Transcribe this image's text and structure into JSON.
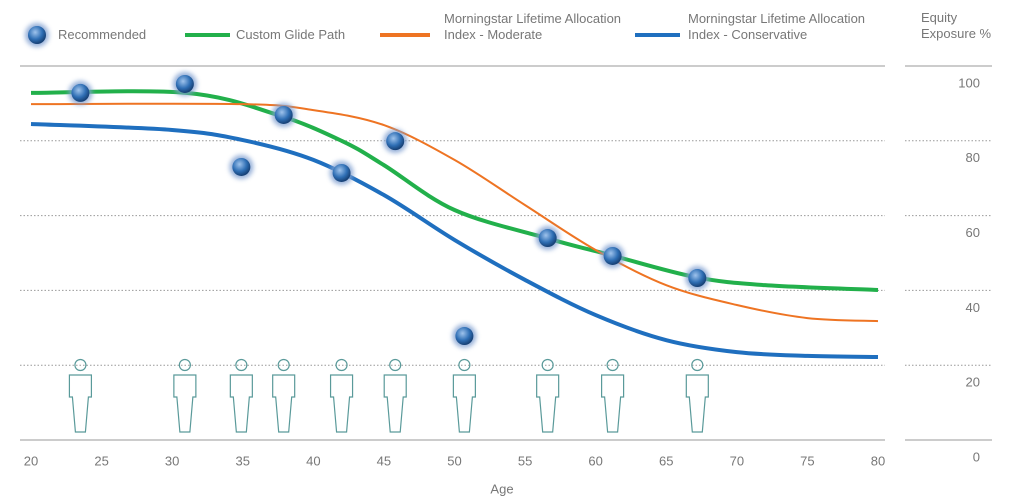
{
  "chart_data": {
    "type": "line",
    "xlabel": "Age",
    "ylabel": "Equity Exposure %",
    "xlim": [
      20,
      80
    ],
    "xticks": [
      20,
      25,
      30,
      35,
      40,
      45,
      50,
      55,
      60,
      65,
      70,
      75,
      80
    ],
    "ylim": [
      0,
      100
    ],
    "yticks": [
      0,
      20,
      40,
      60,
      80,
      100
    ],
    "grid": true,
    "series": [
      {
        "name": "Custom Glide Path",
        "color": "#22b04b",
        "x": [
          20,
          31,
          37.5,
          42,
          45,
          50,
          56.5,
          61,
          67,
          72,
          80
        ],
        "values": [
          92.8,
          92.8,
          86.9,
          80,
          73.5,
          61.5,
          54,
          49.5,
          43.6,
          41.4,
          40.1
        ]
      },
      {
        "name": "Morningstar Lifetime Allocation Index - Moderate",
        "color": "#ee7423",
        "x": [
          20,
          35,
          40,
          45,
          50,
          55,
          60,
          65,
          70,
          75,
          80
        ],
        "values": [
          89.8,
          89.8,
          88.2,
          84.2,
          74.9,
          62.8,
          50.8,
          41.4,
          36.1,
          32.6,
          31.8
        ]
      },
      {
        "name": "Morningstar Lifetime Allocation Index - Conservative",
        "color": "#1f6fbf",
        "x": [
          20,
          30,
          35,
          40,
          45,
          50,
          55,
          60,
          65,
          70,
          75,
          80
        ],
        "values": [
          84.5,
          82.9,
          80.2,
          74.9,
          65.5,
          53.5,
          42.8,
          33.4,
          26.7,
          23.5,
          22.5,
          22.2
        ]
      }
    ],
    "points": {
      "name": "Recommended",
      "x": [
        23.5,
        30.9,
        37.9,
        34.9,
        42.0,
        45.8,
        50.7,
        56.6,
        61.2,
        67.2
      ],
      "values": [
        92.8,
        95.2,
        86.9,
        73.0,
        71.4,
        79.9,
        27.8,
        54.0,
        49.2,
        43.3
      ]
    }
  }
}
